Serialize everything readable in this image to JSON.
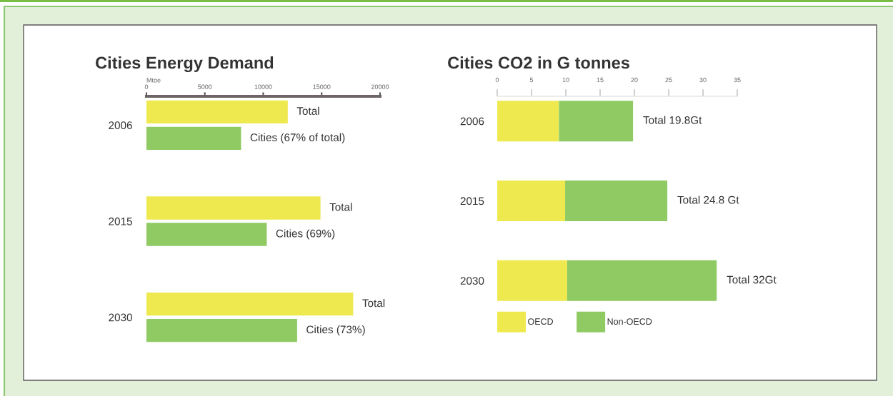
{
  "chart_data": [
    {
      "type": "bar",
      "orientation": "horizontal",
      "title": "Cities Energy Demand",
      "xlabel": "Mtoe",
      "categories": [
        "2006",
        "2015",
        "2030"
      ],
      "series": [
        {
          "color": "#ede94f",
          "values": [
            12100,
            14900,
            17700
          ]
        },
        {
          "color": "#8fca63",
          "values": [
            8100,
            10300,
            12900
          ]
        }
      ],
      "annotations": [
        {
          "text": "Total",
          "x": 12100,
          "y": "2006"
        },
        {
          "text": "Cities (67% of total)",
          "x": 8100,
          "y": "2006"
        },
        {
          "text": "Total",
          "x": 14900,
          "y": "2015"
        },
        {
          "text": "Cities (69%)",
          "x": 10300,
          "y": "2015"
        },
        {
          "text": "Total",
          "x": 17700,
          "y": "2030"
        },
        {
          "text": "Cities (73%)",
          "x": 12900,
          "y": "2030"
        }
      ],
      "xlim": [
        0,
        20000
      ],
      "xticks": [
        0,
        5000,
        10000,
        15000,
        20000
      ]
    },
    {
      "type": "bar",
      "orientation": "horizontal",
      "stacked": true,
      "title": "Cities CO2 in G tonnes",
      "categories": [
        "2006",
        "2015",
        "2030"
      ],
      "series": [
        {
          "name": "OECD",
          "color": "#ede94f",
          "values": [
            9.0,
            9.9,
            10.2
          ]
        },
        {
          "name": "Non-OECD",
          "color": "#8fca63",
          "values": [
            10.8,
            14.9,
            21.8
          ]
        }
      ],
      "totals": [
        "Total 19.8Gt",
        "Total 24.8 Gt",
        "Total 32Gt"
      ],
      "xlim": [
        0,
        35
      ],
      "xticks": [
        0,
        5,
        10,
        15,
        20,
        25,
        30,
        35
      ],
      "legend": "bottom"
    }
  ]
}
